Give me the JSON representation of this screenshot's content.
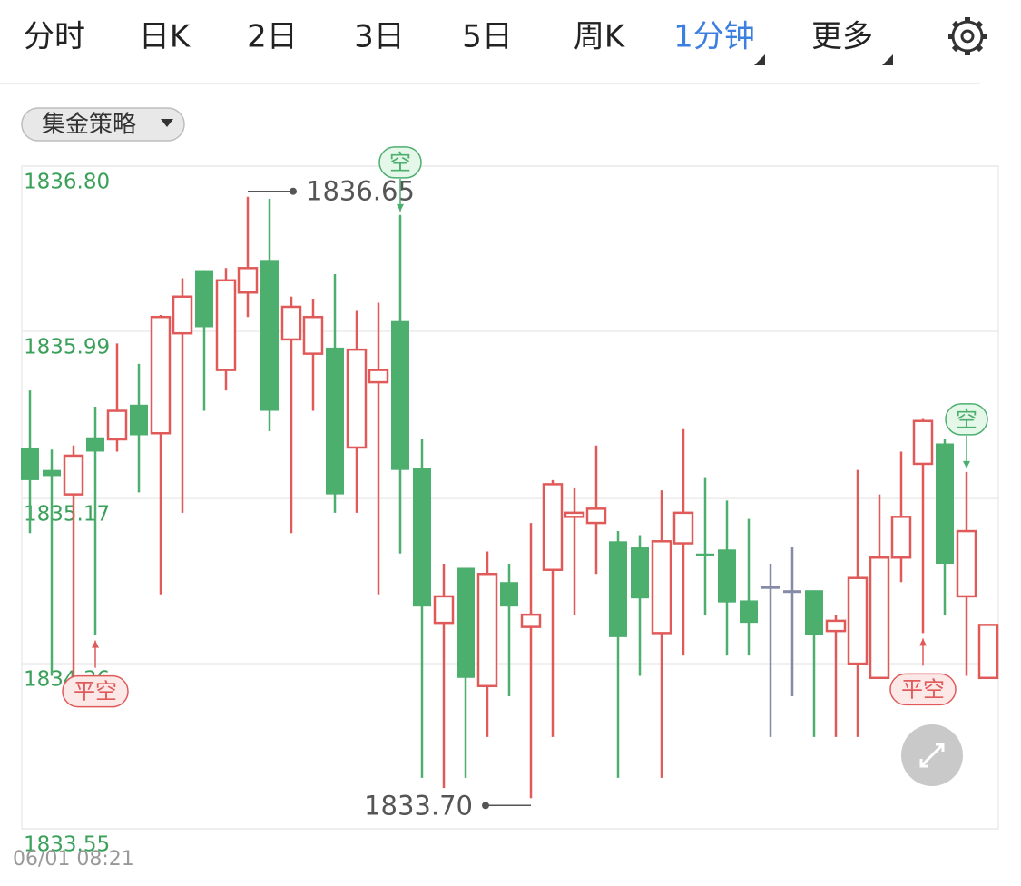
{
  "tabs": [
    "分时",
    "日K",
    "2日",
    "3日",
    "5日",
    "周K",
    "1分钟",
    "更多"
  ],
  "active_tab": 6,
  "strategy_dropdown": "集金策略",
  "chart_data": {
    "type": "candlestick",
    "open": [
      1835.42,
      1835.31,
      1835.19,
      1835.47,
      1835.46,
      1835.63,
      1835.49,
      1835.98,
      1836.29,
      1835.8,
      1836.18,
      1836.34,
      1835.95,
      1835.88,
      1835.91,
      1835.42,
      1835.74,
      1836.04,
      1835.32,
      1834.56,
      1834.83,
      1834.25,
      1834.76,
      1834.54,
      1834.82,
      1835.08,
      1835.05,
      1834.96,
      1834.93,
      1834.51,
      1834.95,
      1834.9,
      1834.92,
      1834.67,
      1834.74,
      1834.72,
      1834.72,
      1834.52,
      1834.36,
      1834.29,
      1834.88,
      1835.34,
      1835.44,
      1834.69,
      1834.29
    ],
    "high": [
      1835.7,
      1835.41,
      1835.43,
      1835.62,
      1835.93,
      1835.83,
      1836.07,
      1836.25,
      1836.29,
      1836.3,
      1836.65,
      1836.64,
      1836.16,
      1836.15,
      1836.27,
      1836.09,
      1836.13,
      1836.56,
      1835.46,
      1834.85,
      1834.83,
      1834.91,
      1834.85,
      1835.05,
      1835.26,
      1835.22,
      1835.43,
      1835.01,
      1834.99,
      1835.21,
      1835.51,
      1835.27,
      1835.16,
      1835.07,
      1834.85,
      1834.93,
      1834.72,
      1834.6,
      1835.31,
      1835.19,
      1835.4,
      1835.56,
      1835.46,
      1835.3,
      1834.55
    ],
    "low": [
      1835.0,
      1834.3,
      1834.23,
      1834.5,
      1835.4,
      1835.2,
      1834.7,
      1835.1,
      1835.6,
      1835.7,
      1836.06,
      1835.5,
      1835.0,
      1835.6,
      1835.1,
      1835.1,
      1834.7,
      1834.9,
      1833.8,
      1833.75,
      1833.8,
      1834.0,
      1834.2,
      1833.7,
      1834.0,
      1834.6,
      1834.8,
      1833.8,
      1834.3,
      1833.8,
      1834.4,
      1834.6,
      1834.4,
      1834.4,
      1834.0,
      1834.2,
      1834.0,
      1834.0,
      1834.0,
      1834.29,
      1834.76,
      1834.51,
      1834.6,
      1834.3,
      1834.29
    ],
    "close": [
      1835.26,
      1835.28,
      1835.38,
      1835.4,
      1835.6,
      1835.48,
      1836.06,
      1836.16,
      1836.01,
      1836.24,
      1836.3,
      1835.6,
      1836.11,
      1836.06,
      1835.19,
      1835.9,
      1835.8,
      1835.31,
      1834.64,
      1834.69,
      1834.29,
      1834.8,
      1834.64,
      1834.6,
      1835.24,
      1835.1,
      1835.12,
      1834.49,
      1834.68,
      1834.96,
      1835.1,
      1834.89,
      1834.66,
      1834.56,
      1834.74,
      1834.72,
      1834.5,
      1834.57,
      1834.78,
      1834.88,
      1835.08,
      1835.55,
      1834.85,
      1835.01,
      1834.55
    ],
    "up_color": "#e05a5a",
    "down_color": "#4caf6e",
    "flat_color": "#868aa6",
    "ylim": [
      1833.55,
      1836.8
    ],
    "yticks": [
      1833.55,
      1834.36,
      1835.17,
      1835.99,
      {
        "value": 1836.8,
        "label": "1836.80"
      }
    ],
    "grid": true,
    "extreme_labels": [
      {
        "text": "1836.65",
        "index": 10,
        "field": "high"
      },
      {
        "text": "1833.70",
        "index": 23,
        "field": "low"
      }
    ],
    "signals": [
      {
        "text": "平空",
        "index": 3,
        "side": "below"
      },
      {
        "text": "空",
        "index": 17,
        "side": "above"
      },
      {
        "text": "平空",
        "index": 41,
        "side": "below"
      },
      {
        "text": "空",
        "index": 43,
        "side": "above"
      }
    ],
    "date_label": "06/01 08:21"
  }
}
